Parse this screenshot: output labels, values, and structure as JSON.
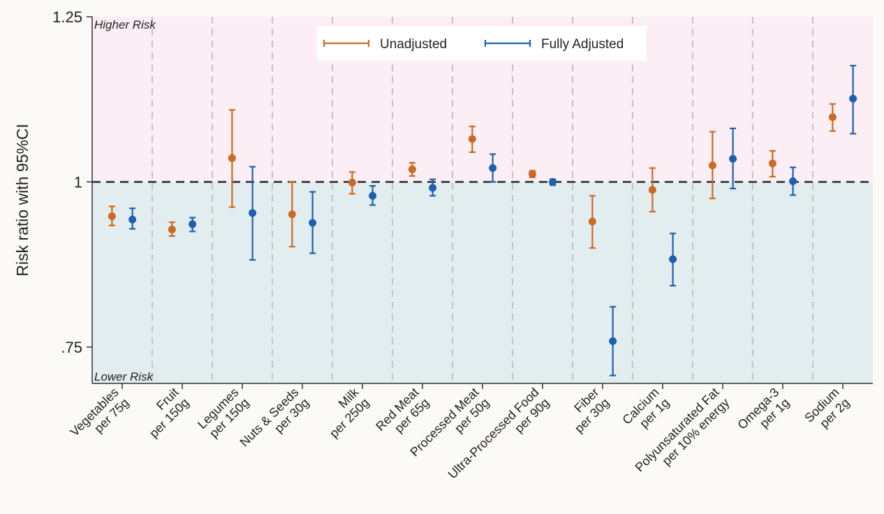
{
  "chart_data": {
    "type": "scatter",
    "subtype": "forest-plot-with-error-bars",
    "ylabel": "Risk ratio with 95%CI",
    "ylim": [
      0.695,
      1.25
    ],
    "yticks": [
      {
        "value": 0.75,
        "label": ".75"
      },
      {
        "value": 1.0,
        "label": "1"
      },
      {
        "value": 1.25,
        "label": "1.25"
      }
    ],
    "reference_line": 1.0,
    "region_labels": {
      "higher": "Higher Risk",
      "lower": "Lower Risk"
    },
    "colors": {
      "higher_region": "#fbeef4",
      "lower_region": "#e2edef",
      "unadjusted": "#cc6a23",
      "adjusted": "#1f5fb0"
    },
    "legend_position": "top-center",
    "categories": [
      {
        "line1": "Vegetables",
        "line2": "per 75g"
      },
      {
        "line1": "Fruit",
        "line2": "per 150g"
      },
      {
        "line1": "Legumes",
        "line2": "per 150g"
      },
      {
        "line1": "Nuts & Seeds",
        "line2": "per 30g"
      },
      {
        "line1": "Milk",
        "line2": "per 250g"
      },
      {
        "line1": "Red Meat",
        "line2": "per 65g"
      },
      {
        "line1": "Processed Meat",
        "line2": "per 50g"
      },
      {
        "line1": "Ultra-Processed Food",
        "line2": "per 90g"
      },
      {
        "line1": "Fiber",
        "line2": "per 30g"
      },
      {
        "line1": "Calcium",
        "line2": "per 1g"
      },
      {
        "line1": "Polyunsaturated Fat",
        "line2": "per 10% energy"
      },
      {
        "line1": "Omega-3",
        "line2": "per 1g"
      },
      {
        "line1": "Sodium",
        "line2": "per 2g"
      }
    ],
    "series": [
      {
        "name": "Unadjusted",
        "points": [
          {
            "est": 0.948,
            "lo": 0.934,
            "hi": 0.963
          },
          {
            "est": 0.928,
            "lo": 0.918,
            "hi": 0.939
          },
          {
            "est": 1.036,
            "lo": 0.962,
            "hi": 1.109
          },
          {
            "est": 0.951,
            "lo": 0.902,
            "hi": 1.0
          },
          {
            "est": 0.999,
            "lo": 0.982,
            "hi": 1.015
          },
          {
            "est": 1.019,
            "lo": 1.009,
            "hi": 1.029
          },
          {
            "est": 1.065,
            "lo": 1.045,
            "hi": 1.084
          },
          {
            "est": 1.012,
            "lo": 1.007,
            "hi": 1.017
          },
          {
            "est": 0.94,
            "lo": 0.9,
            "hi": 0.979
          },
          {
            "est": 0.988,
            "lo": 0.955,
            "hi": 1.021
          },
          {
            "est": 1.025,
            "lo": 0.975,
            "hi": 1.076
          },
          {
            "est": 1.028,
            "lo": 1.008,
            "hi": 1.047
          },
          {
            "est": 1.098,
            "lo": 1.077,
            "hi": 1.118
          }
        ]
      },
      {
        "name": "Fully Adjusted",
        "points": [
          {
            "est": 0.943,
            "lo": 0.929,
            "hi": 0.96
          },
          {
            "est": 0.936,
            "lo": 0.925,
            "hi": 0.946
          },
          {
            "est": 0.953,
            "lo": 0.882,
            "hi": 1.023
          },
          {
            "est": 0.938,
            "lo": 0.892,
            "hi": 0.985
          },
          {
            "est": 0.979,
            "lo": 0.965,
            "hi": 0.994
          },
          {
            "est": 0.991,
            "lo": 0.979,
            "hi": 1.004
          },
          {
            "est": 1.021,
            "lo": 1.0,
            "hi": 1.042
          },
          {
            "est": 1.0,
            "lo": 0.995,
            "hi": 1.004
          },
          {
            "est": 0.759,
            "lo": 0.707,
            "hi": 0.811
          },
          {
            "est": 0.883,
            "lo": 0.843,
            "hi": 0.922
          },
          {
            "est": 1.035,
            "lo": 0.99,
            "hi": 1.081
          },
          {
            "est": 1.001,
            "lo": 0.98,
            "hi": 1.022
          },
          {
            "est": 1.126,
            "lo": 1.073,
            "hi": 1.176
          }
        ]
      }
    ]
  }
}
